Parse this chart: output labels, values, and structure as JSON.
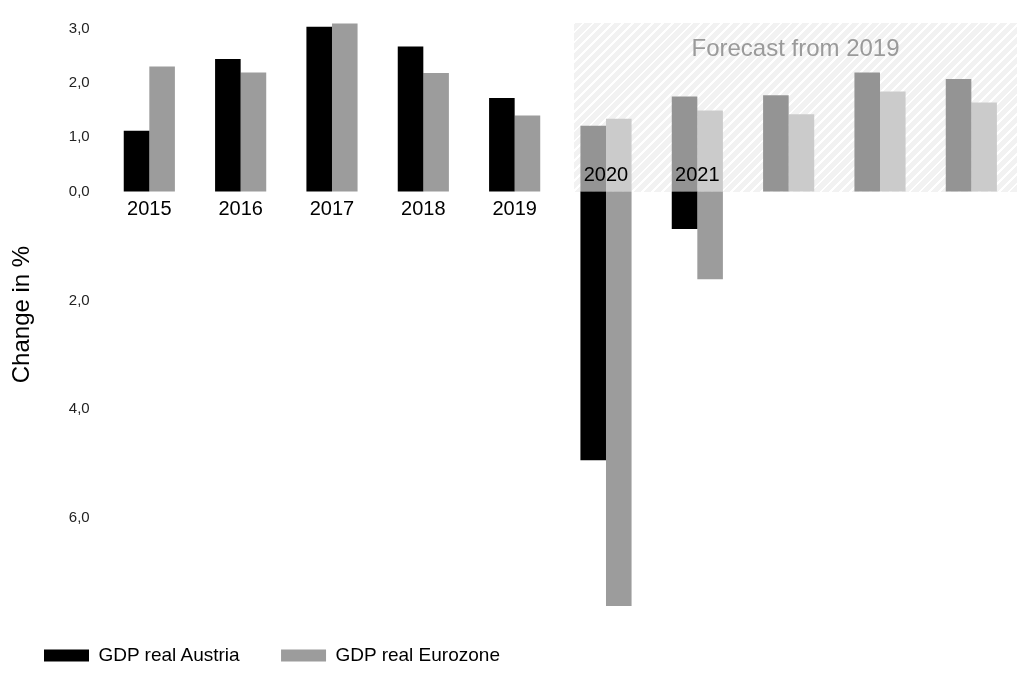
{
  "chart_data": {
    "type": "bar",
    "ylabel": "Change in %",
    "categories": [
      "2015",
      "2016",
      "2017",
      "2018",
      "2019",
      "2020",
      "2021",
      null,
      null,
      null
    ],
    "series": [
      {
        "name": "GDP real Austria",
        "color": "#000000",
        "values": [
          1.12,
          2.44,
          3.03,
          2.67,
          1.72,
          -4.94,
          -0.69,
          null,
          null,
          null
        ]
      },
      {
        "name": "GDP real Eurozone",
        "color": "#9c9c9c",
        "values": [
          2.3,
          2.19,
          3.09,
          2.18,
          1.4,
          -7.62,
          -1.61,
          null,
          null,
          null
        ]
      },
      {
        "color": "#949494",
        "values": [
          null,
          null,
          null,
          null,
          null,
          1.21,
          1.75,
          1.77,
          2.19,
          2.07
        ]
      },
      {
        "color": "#cbcbcb",
        "values": [
          null,
          null,
          null,
          null,
          null,
          1.34,
          1.49,
          1.42,
          1.84,
          1.64
        ]
      }
    ],
    "ylim": [
      -7.62,
      3.1
    ],
    "yticks": [
      {
        "value": -6,
        "label": "6,0"
      },
      {
        "value": -4,
        "label": "4,0"
      },
      {
        "value": -2,
        "label": "2,0"
      },
      {
        "value": 0,
        "label": "0,0"
      },
      {
        "value": 1,
        "label": "1,0"
      },
      {
        "value": 2,
        "label": "2,0"
      },
      {
        "value": 3,
        "label": "3,0"
      }
    ],
    "annotations": [
      "Forecast from 2019"
    ],
    "grid": false,
    "legend": "bottom left"
  }
}
